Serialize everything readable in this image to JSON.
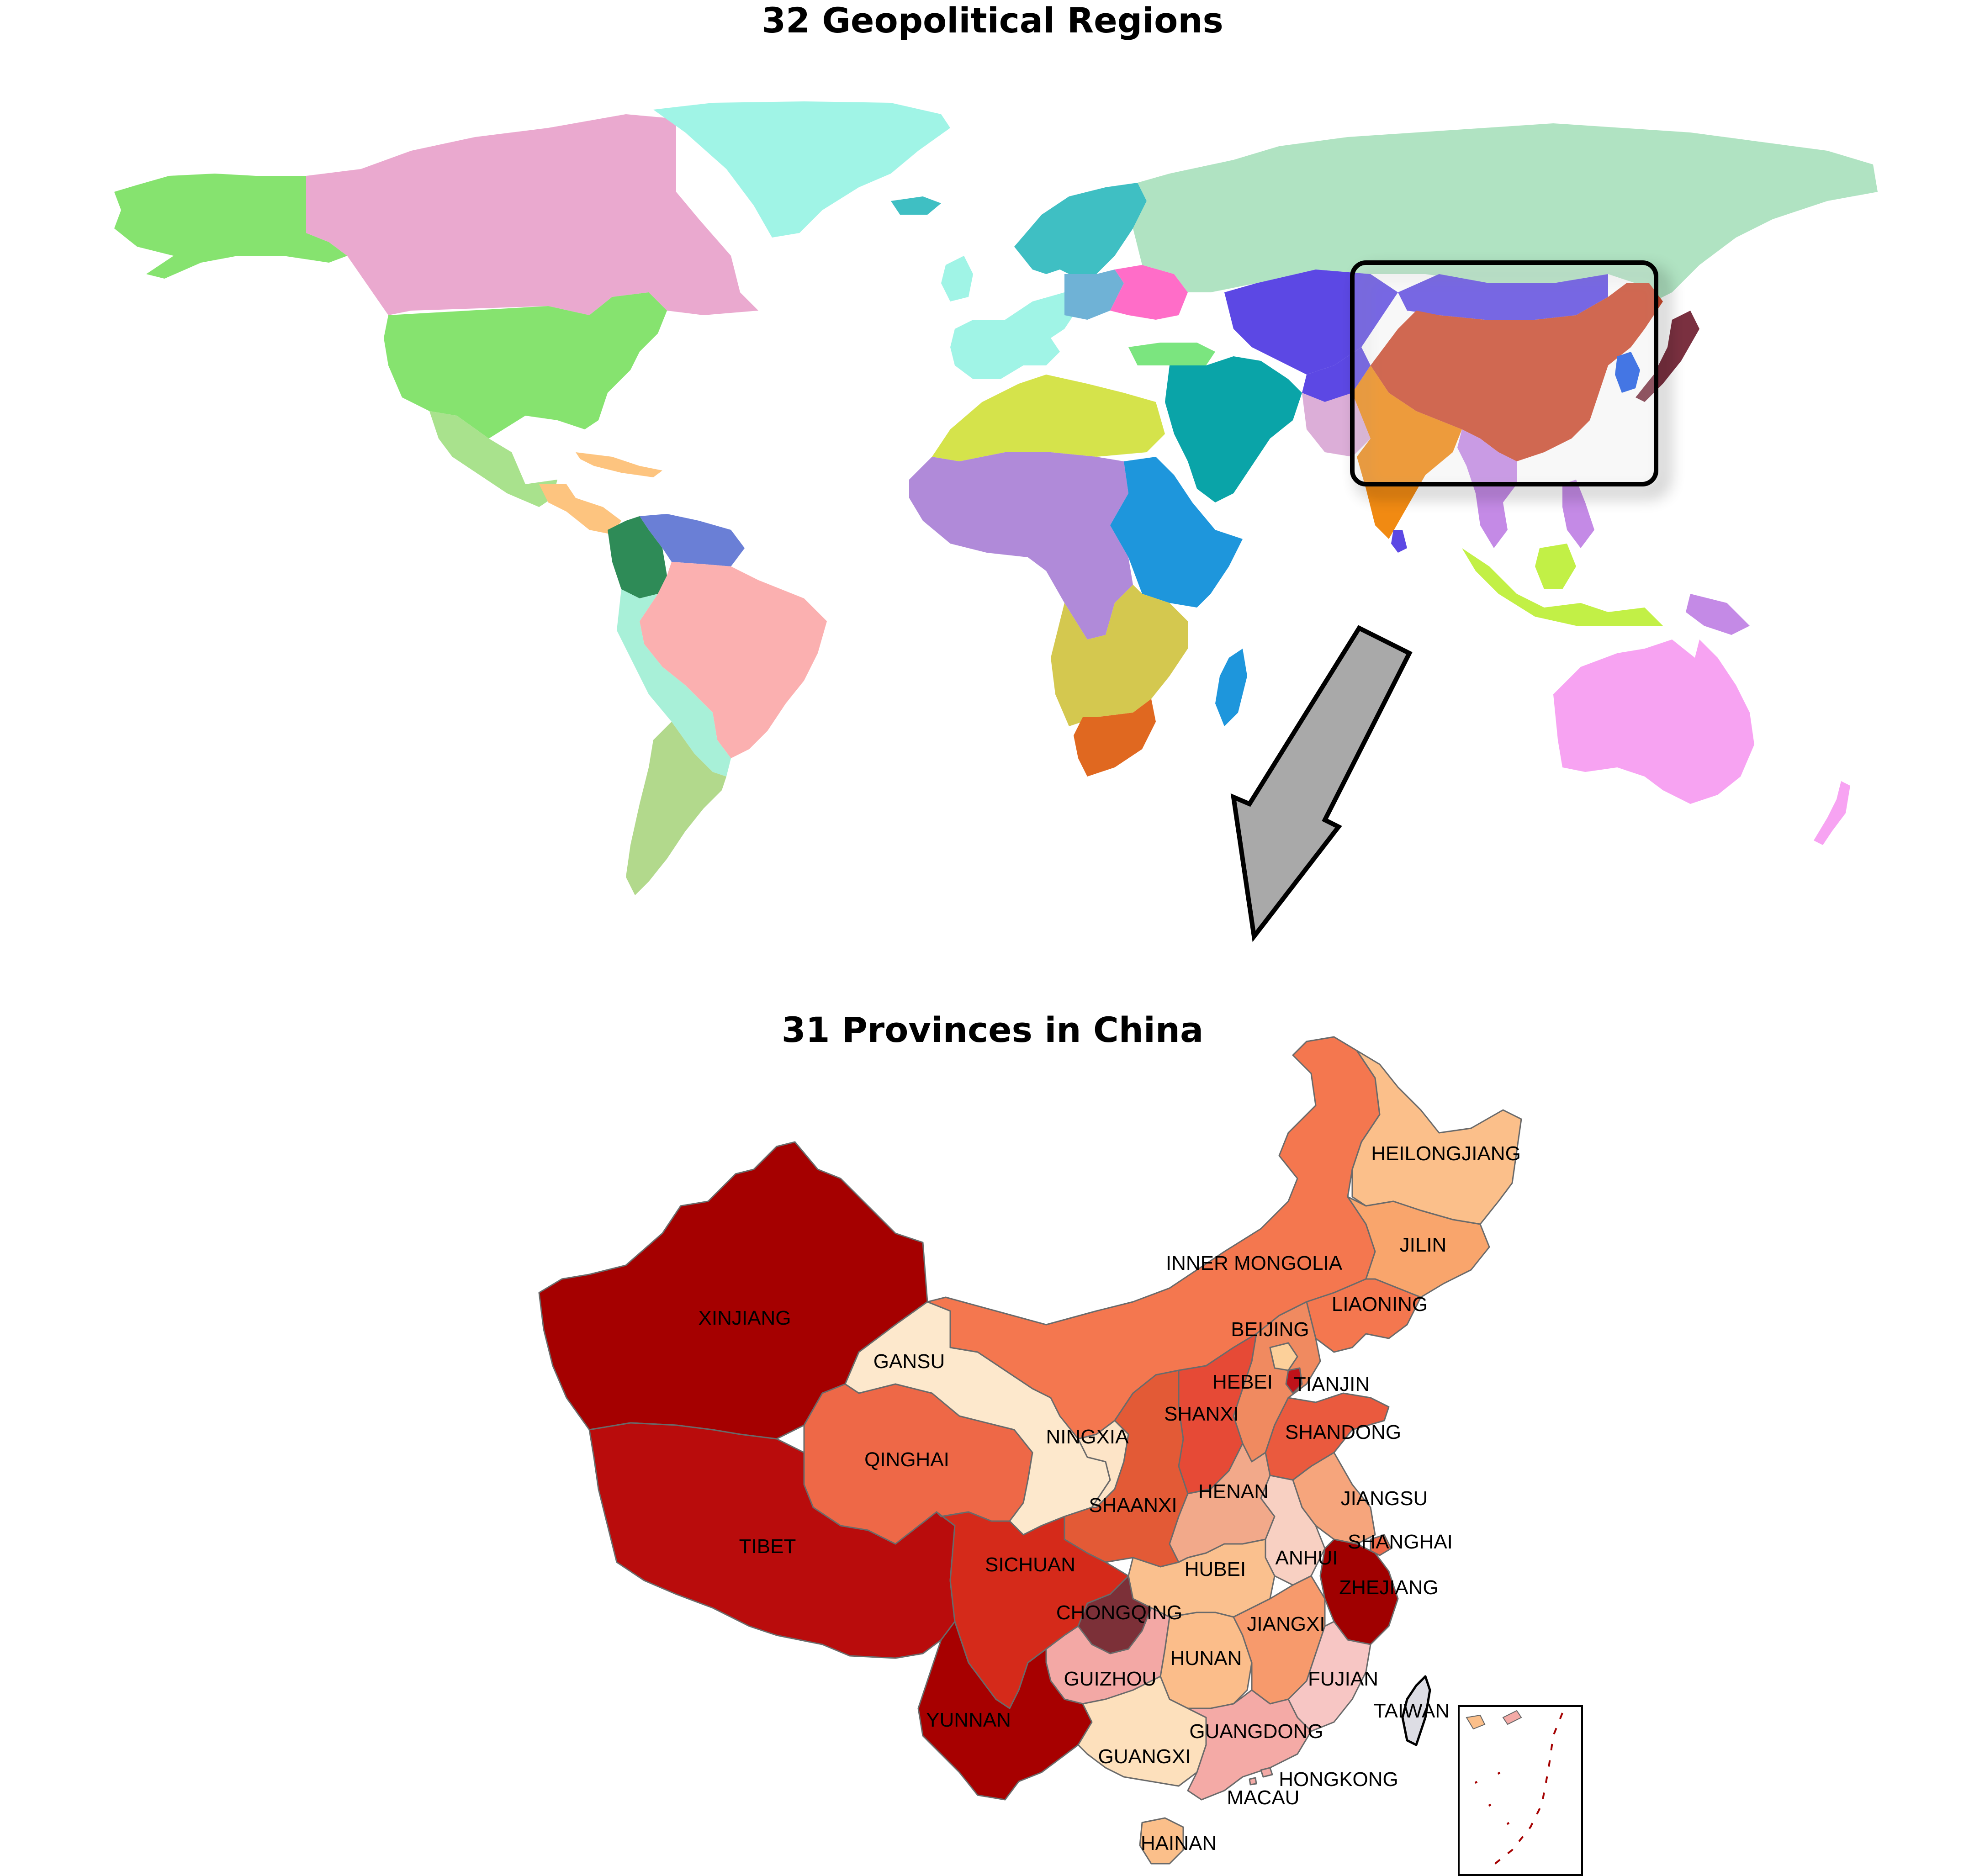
{
  "titles": {
    "world": "32 Geopolitical Regions",
    "china": "31 Provinces in China"
  },
  "world_regions": [
    {
      "name": "Alaska",
      "color": "#86e36f"
    },
    {
      "name": "Canada",
      "color": "#eaa9cf"
    },
    {
      "name": "Greenland",
      "color": "#a0f4e6"
    },
    {
      "name": "USA",
      "color": "#86e36f"
    },
    {
      "name": "Mexico",
      "color": "#a9e28d"
    },
    {
      "name": "Central America",
      "color": "#fdc47f"
    },
    {
      "name": "Colombia",
      "color": "#2e8b57"
    },
    {
      "name": "Northern South America",
      "color": "#6a7fd6"
    },
    {
      "name": "Brazil",
      "color": "#fbb0b0"
    },
    {
      "name": "Andes",
      "color": "#a8f0d8"
    },
    {
      "name": "Argentina",
      "color": "#b2d98c"
    },
    {
      "name": "Western Europe",
      "color": "#a0f4e6"
    },
    {
      "name": "Scandinavia",
      "color": "#3fbfc3"
    },
    {
      "name": "Central Europe",
      "color": "#6fb2d6"
    },
    {
      "name": "Eastern Europe",
      "color": "#ff6dc8"
    },
    {
      "name": "Russia",
      "color": "#b0e3c2"
    },
    {
      "name": "Central Asia",
      "color": "#5c48e4"
    },
    {
      "name": "Middle East",
      "color": "#0aa4a8"
    },
    {
      "name": "Turkey",
      "color": "#7be57f"
    },
    {
      "name": "North Africa",
      "color": "#d5e34b"
    },
    {
      "name": "Western Africa",
      "color": "#b08ad9"
    },
    {
      "name": "Eastern Africa",
      "color": "#1e96dc"
    },
    {
      "name": "Southern Africa",
      "color": "#d4c84f"
    },
    {
      "name": "South Africa",
      "color": "#e06820"
    },
    {
      "name": "China",
      "color": "#cc4a2d"
    },
    {
      "name": "India",
      "color": "#f18a12"
    },
    {
      "name": "South Asia",
      "color": "#dcaed8"
    },
    {
      "name": "Southeast Asia",
      "color": "#c48ae6"
    },
    {
      "name": "Indonesia",
      "color": "#c2f046"
    },
    {
      "name": "Japan",
      "color": "#7a3040"
    },
    {
      "name": "South Korea",
      "color": "#1c5be6"
    },
    {
      "name": "Australia",
      "color": "#f7a3f2"
    }
  ],
  "provinces": [
    {
      "name": "XINJIANG",
      "color": "#a50000"
    },
    {
      "name": "TIBET",
      "color": "#b90c0c"
    },
    {
      "name": "QINGHAI",
      "color": "#ee6847"
    },
    {
      "name": "GANSU",
      "color": "#fde8cc"
    },
    {
      "name": "INNER MONGOLIA",
      "color": "#f4774f"
    },
    {
      "name": "HEILONGJIANG",
      "color": "#fbbf8a"
    },
    {
      "name": "JILIN",
      "color": "#f9a56c"
    },
    {
      "name": "LIAONING",
      "color": "#f4774f"
    },
    {
      "name": "BEIJING",
      "color": "#fcd09a"
    },
    {
      "name": "TIANJIN",
      "color": "#c0121a"
    },
    {
      "name": "HEBEI",
      "color": "#f08a60"
    },
    {
      "name": "SHANXI",
      "color": "#e64a36"
    },
    {
      "name": "SHANDONG",
      "color": "#ea5a3e"
    },
    {
      "name": "NINGXIA",
      "color": "#fde4c7"
    },
    {
      "name": "SHAANXI",
      "color": "#e35a36"
    },
    {
      "name": "HENAN",
      "color": "#f2a98a"
    },
    {
      "name": "JIANGSU",
      "color": "#f6a57c"
    },
    {
      "name": "ANHUI",
      "color": "#f8d0c2"
    },
    {
      "name": "SHANGHAI",
      "color": "#f06a4a"
    },
    {
      "name": "ZHEJIANG",
      "color": "#a00000"
    },
    {
      "name": "HUBEI",
      "color": "#fac08e"
    },
    {
      "name": "SICHUAN",
      "color": "#d52a1a"
    },
    {
      "name": "CHONGQING",
      "color": "#7c3038"
    },
    {
      "name": "JIANGXI",
      "color": "#f79a6c"
    },
    {
      "name": "HUNAN",
      "color": "#fbbd8a"
    },
    {
      "name": "GUIZHOU",
      "color": "#f3a8a5"
    },
    {
      "name": "FUJIAN",
      "color": "#f7c6c4"
    },
    {
      "name": "YUNNAN",
      "color": "#a70000"
    },
    {
      "name": "GUANGXI",
      "color": "#fde0bc"
    },
    {
      "name": "GUANGDONG",
      "color": "#f4aaa6"
    },
    {
      "name": "TAIWAN",
      "color": "#dddde4"
    },
    {
      "name": "HONGKONG",
      "color": "#f4aaa6"
    },
    {
      "name": "MACAU",
      "color": "#f4aaa6"
    },
    {
      "name": "HAINAN",
      "color": "#fbbf8a"
    }
  ]
}
